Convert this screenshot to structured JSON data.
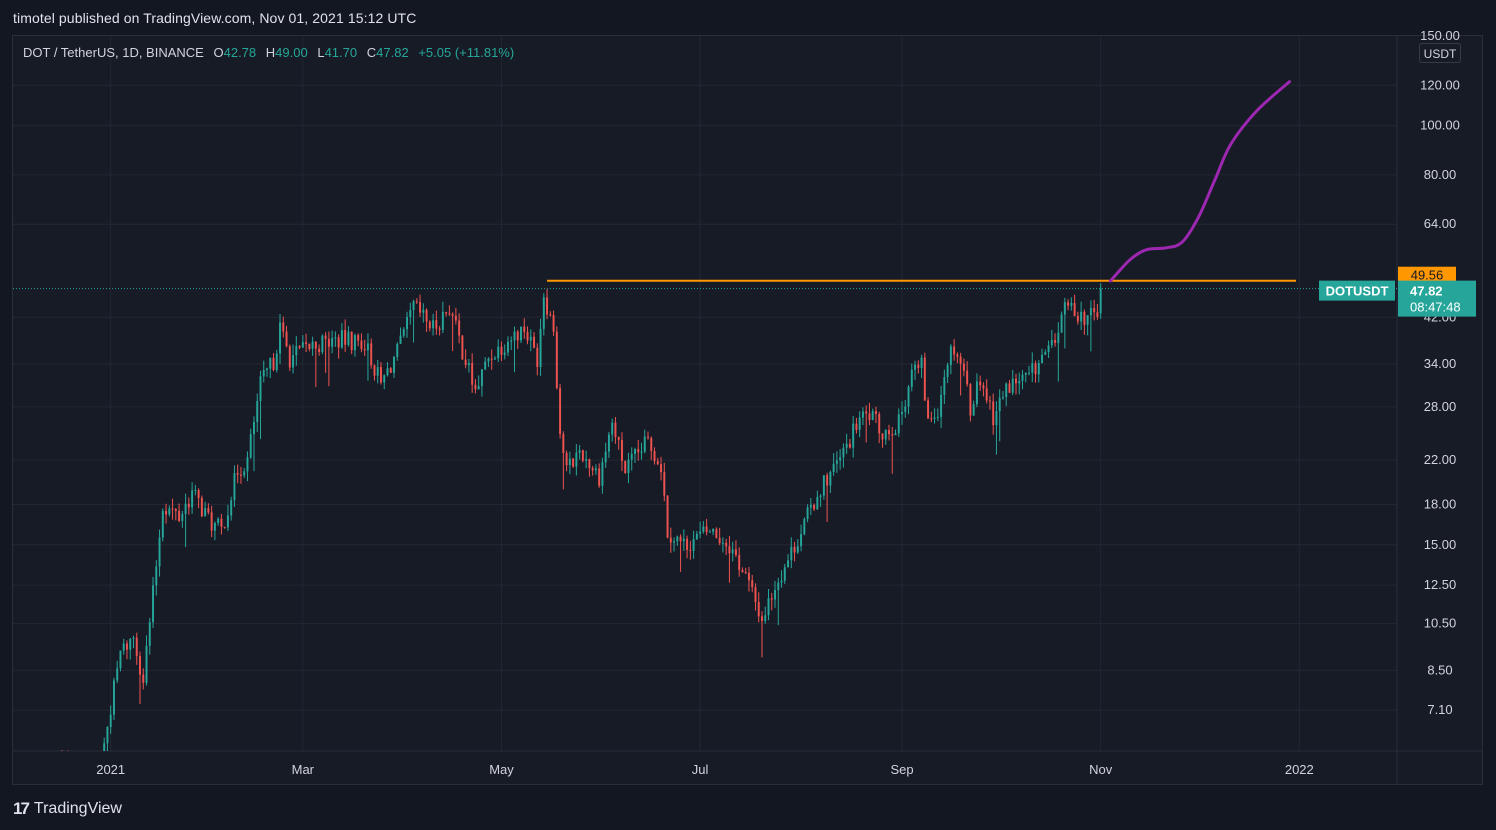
{
  "header": {
    "publisher_line": "timotel published on TradingView.com, Nov 01, 2021 15:12 UTC"
  },
  "legend": {
    "symbol": "DOT / TetherUS, 1D, BINANCE",
    "o_label": "O",
    "o_value": "42.78",
    "h_label": "H",
    "h_value": "49.00",
    "l_label": "L",
    "l_value": "41.70",
    "c_label": "C",
    "c_value": "47.82",
    "change": "+5.05 (+11.81%)"
  },
  "currency_badge": "USDT",
  "footer": {
    "brand": "TradingView",
    "logo_glyph": "17"
  },
  "colors": {
    "background": "#131722",
    "pane": "#171b26",
    "grid": "#232733",
    "up": "#26a69a",
    "down": "#ef5350",
    "resistance": "#ff9800",
    "projection": "#9c27b0",
    "axis_text": "#d1d4dc"
  },
  "chart_data": {
    "type": "candlestick",
    "symbol": "DOTUSDT",
    "interval": "1D",
    "y_scale": "log",
    "ylim": [
      5.9,
      150
    ],
    "y_ticks": [
      7.1,
      8.5,
      10.5,
      12.5,
      15.0,
      18.0,
      22.0,
      28.0,
      34.0,
      42.0,
      64.0,
      80.0,
      100.0,
      120.0,
      150.0
    ],
    "y_tick_labels": [
      "7.10",
      "8.50",
      "10.50",
      "12.50",
      "15.00",
      "18.00",
      "22.00",
      "28.00",
      "34.00",
      "42.00",
      "64.00",
      "80.00",
      "100.00",
      "120.00",
      "150.00"
    ],
    "x_range": [
      "2020-12-02",
      "2022-01-31"
    ],
    "x_ticks": [
      {
        "date": "2021-01-01",
        "label": "2021"
      },
      {
        "date": "2021-03-01",
        "label": "Mar"
      },
      {
        "date": "2021-05-01",
        "label": "May"
      },
      {
        "date": "2021-07-01",
        "label": "Jul"
      },
      {
        "date": "2021-09-01",
        "label": "Sep"
      },
      {
        "date": "2021-11-01",
        "label": "Nov"
      },
      {
        "date": "2022-01-01",
        "label": "2022"
      }
    ],
    "price_path": [
      {
        "date": "2020-12-15",
        "close": 5.6
      },
      {
        "date": "2020-12-28",
        "close": 5.1
      },
      {
        "date": "2021-01-01",
        "close": 7.2
      },
      {
        "date": "2021-01-04",
        "close": 9.2
      },
      {
        "date": "2021-01-08",
        "close": 9.9
      },
      {
        "date": "2021-01-11",
        "close": 8.2
      },
      {
        "date": "2021-01-14",
        "close": 12.0
      },
      {
        "date": "2021-01-17",
        "close": 18.0
      },
      {
        "date": "2021-01-22",
        "close": 17.0
      },
      {
        "date": "2021-01-26",
        "close": 19.0
      },
      {
        "date": "2021-02-01",
        "close": 16.5
      },
      {
        "date": "2021-02-04",
        "close": 16.0
      },
      {
        "date": "2021-02-09",
        "close": 21.0
      },
      {
        "date": "2021-02-12",
        "close": 22.0
      },
      {
        "date": "2021-02-16",
        "close": 31.0
      },
      {
        "date": "2021-02-20",
        "close": 34.5
      },
      {
        "date": "2021-02-22",
        "close": 40.0
      },
      {
        "date": "2021-02-25",
        "close": 35.0
      },
      {
        "date": "2021-03-04",
        "close": 37.0
      },
      {
        "date": "2021-03-12",
        "close": 38.0
      },
      {
        "date": "2021-03-20",
        "close": 37.5
      },
      {
        "date": "2021-03-25",
        "close": 31.0
      },
      {
        "date": "2021-03-31",
        "close": 37.0
      },
      {
        "date": "2021-04-04",
        "close": 44.0
      },
      {
        "date": "2021-04-10",
        "close": 40.0
      },
      {
        "date": "2021-04-15",
        "close": 44.0
      },
      {
        "date": "2021-04-18",
        "close": 38.0
      },
      {
        "date": "2021-04-23",
        "close": 30.0
      },
      {
        "date": "2021-04-27",
        "close": 35.0
      },
      {
        "date": "2021-05-03",
        "close": 38.0
      },
      {
        "date": "2021-05-08",
        "close": 40.0
      },
      {
        "date": "2021-05-12",
        "close": 35.0
      },
      {
        "date": "2021-05-14",
        "close": 47.0
      },
      {
        "date": "2021-05-17",
        "close": 40.0
      },
      {
        "date": "2021-05-19",
        "close": 25.0
      },
      {
        "date": "2021-05-21",
        "close": 21.0
      },
      {
        "date": "2021-05-25",
        "close": 23.0
      },
      {
        "date": "2021-05-31",
        "close": 20.5
      },
      {
        "date": "2021-06-04",
        "close": 26.0
      },
      {
        "date": "2021-06-08",
        "close": 21.0
      },
      {
        "date": "2021-06-15",
        "close": 24.0
      },
      {
        "date": "2021-06-19",
        "close": 21.5
      },
      {
        "date": "2021-06-21",
        "close": 16.0
      },
      {
        "date": "2021-06-26",
        "close": 15.0
      },
      {
        "date": "2021-07-04",
        "close": 16.0
      },
      {
        "date": "2021-07-10",
        "close": 15.0
      },
      {
        "date": "2021-07-15",
        "close": 13.0
      },
      {
        "date": "2021-07-20",
        "close": 10.7
      },
      {
        "date": "2021-07-24",
        "close": 12.5
      },
      {
        "date": "2021-07-29",
        "close": 14.5
      },
      {
        "date": "2021-08-02",
        "close": 16.5
      },
      {
        "date": "2021-08-07",
        "close": 19.5
      },
      {
        "date": "2021-08-13",
        "close": 22.0
      },
      {
        "date": "2021-08-19",
        "close": 26.5
      },
      {
        "date": "2021-08-22",
        "close": 27.0
      },
      {
        "date": "2021-08-26",
        "close": 25.0
      },
      {
        "date": "2021-08-31",
        "close": 26.0
      },
      {
        "date": "2021-09-04",
        "close": 33.0
      },
      {
        "date": "2021-09-07",
        "close": 33.5
      },
      {
        "date": "2021-09-09",
        "close": 26.0
      },
      {
        "date": "2021-09-12",
        "close": 28.0
      },
      {
        "date": "2021-09-15",
        "close": 35.0
      },
      {
        "date": "2021-09-17",
        "close": 37.0
      },
      {
        "date": "2021-09-20",
        "close": 33.0
      },
      {
        "date": "2021-09-22",
        "close": 28.0
      },
      {
        "date": "2021-09-25",
        "close": 32.0
      },
      {
        "date": "2021-09-29",
        "close": 27.0
      },
      {
        "date": "2021-10-04",
        "close": 31.0
      },
      {
        "date": "2021-10-10",
        "close": 32.0
      },
      {
        "date": "2021-10-14",
        "close": 35.0
      },
      {
        "date": "2021-10-18",
        "close": 37.0
      },
      {
        "date": "2021-10-20",
        "close": 43.0
      },
      {
        "date": "2021-10-23",
        "close": 44.0
      },
      {
        "date": "2021-10-27",
        "close": 42.0
      },
      {
        "date": "2021-10-31",
        "close": 42.78
      },
      {
        "date": "2021-11-01",
        "close": 47.82
      }
    ],
    "last_candle": {
      "date": "2021-11-01",
      "open": 42.78,
      "high": 49.0,
      "low": 41.7,
      "close": 47.82
    },
    "resistance_line": {
      "price": 49.56,
      "from": "2021-05-15",
      "to": "2021-12-31",
      "label": "49.56"
    },
    "last_price_line": {
      "price": 47.82
    },
    "price_tag": {
      "symbol": "DOTUSDT",
      "value": "47.82",
      "countdown": "08:47:48"
    },
    "projection": [
      {
        "date": "2021-11-04",
        "price": 49.5
      },
      {
        "date": "2021-11-10",
        "price": 54.5
      },
      {
        "date": "2021-11-15",
        "price": 57.0
      },
      {
        "date": "2021-11-21",
        "price": 57.5
      },
      {
        "date": "2021-11-26",
        "price": 59.0
      },
      {
        "date": "2021-12-01",
        "price": 66.0
      },
      {
        "date": "2021-12-06",
        "price": 78.0
      },
      {
        "date": "2021-12-11",
        "price": 92.0
      },
      {
        "date": "2021-12-19",
        "price": 107.0
      },
      {
        "date": "2021-12-29",
        "price": 122.0
      }
    ]
  }
}
